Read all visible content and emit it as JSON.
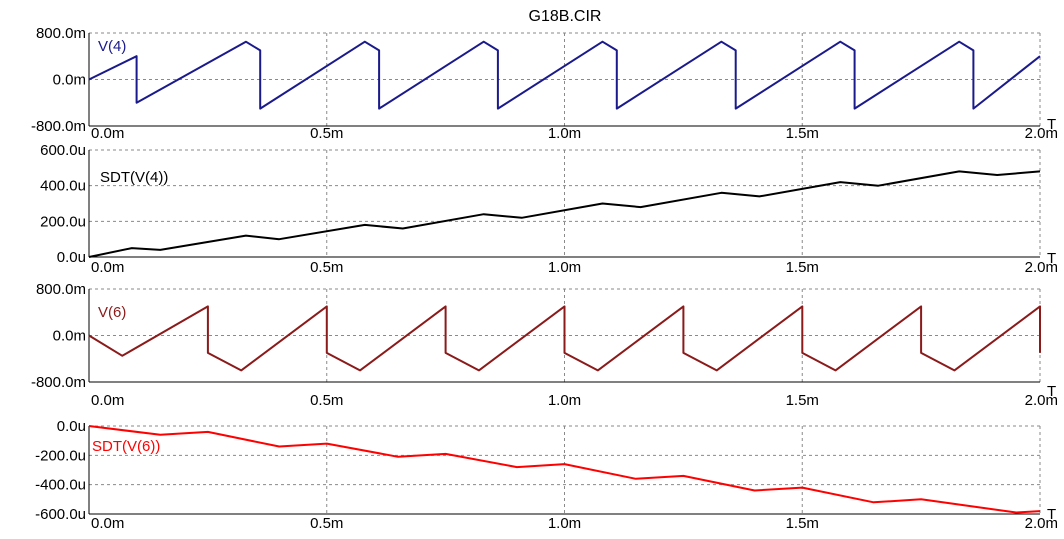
{
  "window": {
    "title": "G18B.CIR"
  },
  "chart_data": [
    {
      "type": "line",
      "title": "G18B.CIR",
      "series": [
        {
          "name": "V(4)",
          "color": "#1a1a8c",
          "x": [
            0,
            0.0001,
            0.0001,
            0.00033,
            0.00036,
            0.00036,
            0.00058,
            0.00061,
            0.00061,
            0.00083,
            0.00086,
            0.00086,
            0.00108,
            0.00111,
            0.00111,
            0.00133,
            0.00136,
            0.00136,
            0.00158,
            0.00161,
            0.00161,
            0.00183,
            0.00186,
            0.00186,
            0.002
          ],
          "y": [
            0,
            0.4,
            -0.4,
            0.65,
            0.5,
            -0.5,
            0.65,
            0.5,
            -0.5,
            0.65,
            0.5,
            -0.5,
            0.65,
            0.5,
            -0.5,
            0.65,
            0.5,
            -0.5,
            0.65,
            0.5,
            -0.5,
            0.65,
            0.5,
            -0.5,
            0.4
          ]
        }
      ],
      "xlim": [
        0,
        0.002
      ],
      "ylim": [
        -0.8,
        0.8
      ],
      "yticks": [
        "800.0m",
        "0.0m",
        "-800.0m"
      ],
      "xticks": [
        "0.0m",
        "0.5m",
        "1.0m",
        "1.5m",
        "2.0m"
      ],
      "xunit": "T"
    },
    {
      "type": "line",
      "series": [
        {
          "name": "SDT(V(4))",
          "color": "#000000",
          "x": [
            0,
            9e-05,
            0.00015,
            0.00033,
            0.0004,
            0.00058,
            0.00066,
            0.00083,
            0.00091,
            0.00108,
            0.00116,
            0.00133,
            0.00141,
            0.00158,
            0.00166,
            0.00183,
            0.00191,
            0.002
          ],
          "y": [
            0,
            5e-05,
            4e-05,
            0.00012,
            0.0001,
            0.00018,
            0.00016,
            0.00024,
            0.00022,
            0.0003,
            0.00028,
            0.00036,
            0.00034,
            0.00042,
            0.0004,
            0.00048,
            0.00046,
            0.00048
          ]
        }
      ],
      "xlim": [
        0,
        0.002
      ],
      "ylim": [
        0,
        0.0006
      ],
      "yticks": [
        "600.0u",
        "400.0u",
        "200.0u",
        "0.0u"
      ],
      "xticks": [
        "0.0m",
        "0.5m",
        "1.0m",
        "1.5m",
        "2.0m"
      ],
      "xunit": "T"
    },
    {
      "type": "line",
      "series": [
        {
          "name": "V(6)",
          "color": "#8b1a1a",
          "x": [
            0,
            7e-05,
            0.00025,
            0.00025,
            0.00032,
            0.0005,
            0.0005,
            0.00057,
            0.00075,
            0.00075,
            0.00082,
            0.001,
            0.001,
            0.00107,
            0.00125,
            0.00125,
            0.00132,
            0.0015,
            0.0015,
            0.00157,
            0.00175,
            0.00175,
            0.00182,
            0.002,
            0.002
          ],
          "y": [
            0,
            -0.35,
            0.5,
            -0.3,
            -0.6,
            0.5,
            -0.3,
            -0.6,
            0.5,
            -0.3,
            -0.6,
            0.5,
            -0.3,
            -0.6,
            0.5,
            -0.3,
            -0.6,
            0.5,
            -0.3,
            -0.6,
            0.5,
            -0.3,
            -0.6,
            0.5,
            -0.3
          ]
        }
      ],
      "xlim": [
        0,
        0.002
      ],
      "ylim": [
        -0.8,
        0.8
      ],
      "yticks": [
        "800.0m",
        "0.0m",
        "-800.0m"
      ],
      "xticks": [
        "0.0m",
        "0.5m",
        "1.0m",
        "1.5m",
        "2.0m"
      ],
      "xunit": "T"
    },
    {
      "type": "line",
      "series": [
        {
          "name": "SDT(V(6))",
          "color": "#ff0000",
          "x": [
            0,
            0.00015,
            0.00025,
            0.0004,
            0.0005,
            0.00065,
            0.00075,
            0.0009,
            0.001,
            0.00115,
            0.00125,
            0.0014,
            0.0015,
            0.00165,
            0.00175,
            0.00195,
            0.002
          ],
          "y": [
            0,
            -6e-05,
            -4e-05,
            -0.00014,
            -0.00012,
            -0.00021,
            -0.00019,
            -0.00028,
            -0.00026,
            -0.00036,
            -0.00034,
            -0.00044,
            -0.00042,
            -0.00052,
            -0.0005,
            -0.00059,
            -0.00058
          ]
        }
      ],
      "xlim": [
        0,
        0.002
      ],
      "ylim": [
        -0.0006,
        0
      ],
      "yticks": [
        "0.0u",
        "-200.0u",
        "-400.0u",
        "-600.0u"
      ],
      "xticks": [
        "0.0m",
        "0.5m",
        "1.0m",
        "1.5m",
        "2.0m"
      ],
      "xunit": "T"
    }
  ]
}
